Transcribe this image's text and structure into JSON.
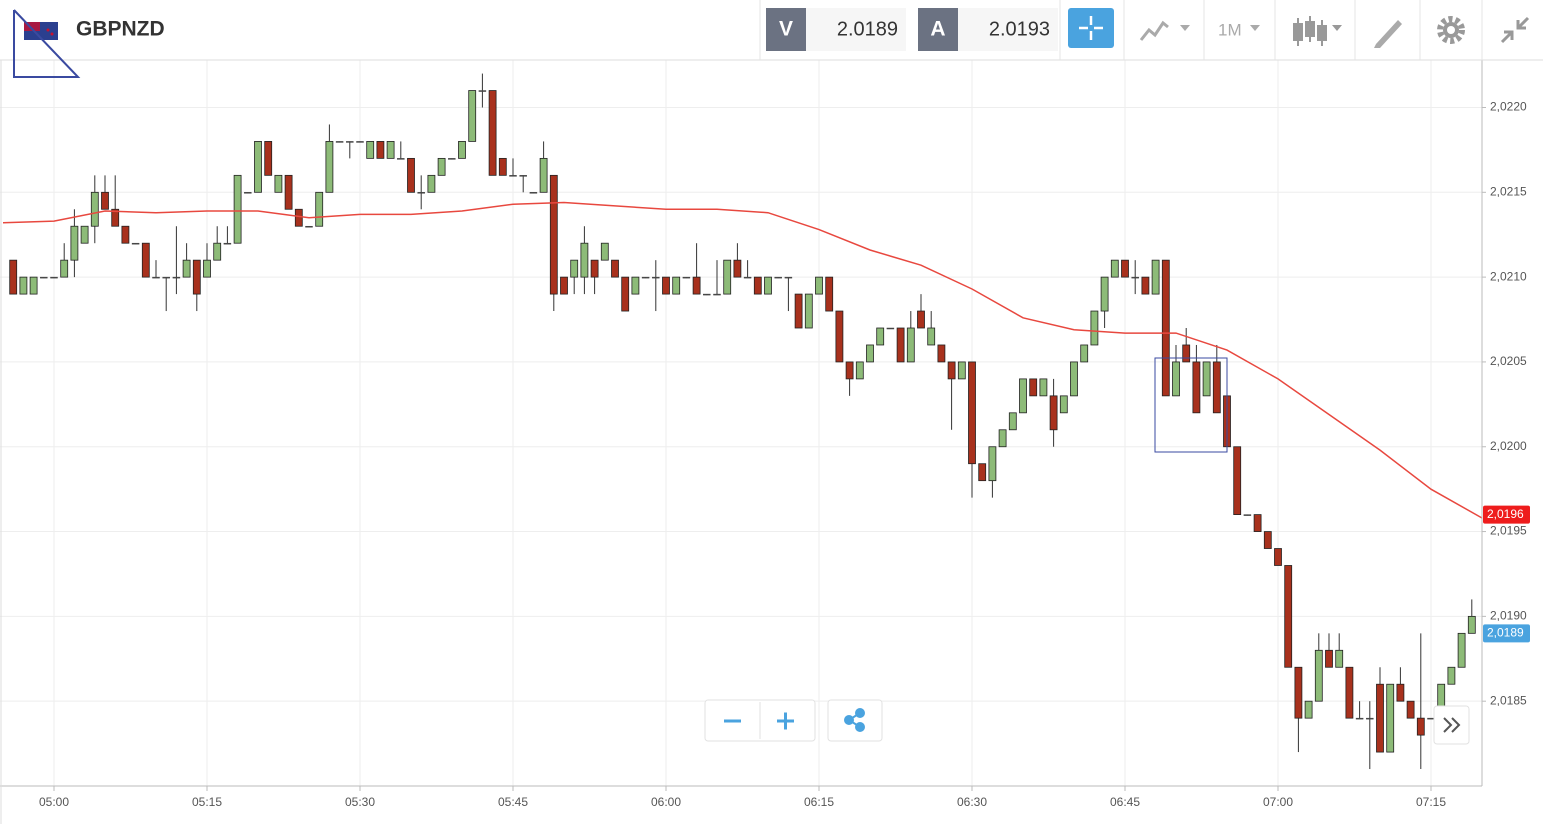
{
  "toolbar": {
    "symbol": "GBPNZD",
    "bid_label": "V",
    "bid": 2.0189,
    "ask_label": "A",
    "ask": 2.0193,
    "timeframe": "1M"
  },
  "chart_data": {
    "type": "candlestick",
    "x": [
      "04:56",
      "04:57",
      "04:58",
      "04:59",
      "05:00",
      "05:01",
      "05:02",
      "05:03",
      "05:04",
      "05:05",
      "05:06",
      "05:07",
      "05:08",
      "05:09",
      "05:10",
      "05:11",
      "05:12",
      "05:13",
      "05:14",
      "05:15",
      "05:16",
      "05:17",
      "05:18",
      "05:19",
      "05:20",
      "05:21",
      "05:22",
      "05:23",
      "05:24",
      "05:25",
      "05:26",
      "05:27",
      "05:28",
      "05:29",
      "05:30",
      "05:31",
      "05:32",
      "05:33",
      "05:34",
      "05:35",
      "05:36",
      "05:37",
      "05:38",
      "05:39",
      "05:40",
      "05:41",
      "05:42",
      "05:43",
      "05:44",
      "05:45",
      "05:46",
      "05:47",
      "05:48",
      "05:49",
      "05:50",
      "05:51",
      "05:52",
      "05:53",
      "05:54",
      "05:55",
      "05:56",
      "05:57",
      "05:58",
      "05:59",
      "06:00",
      "06:01",
      "06:02",
      "06:03",
      "06:04",
      "06:05",
      "06:06",
      "06:07",
      "06:08",
      "06:09",
      "06:10",
      "06:11",
      "06:12",
      "06:13",
      "06:14",
      "06:15",
      "06:16",
      "06:17",
      "06:18",
      "06:19",
      "06:20",
      "06:21",
      "06:22",
      "06:23",
      "06:24",
      "06:25",
      "06:26",
      "06:27",
      "06:28",
      "06:29",
      "06:30",
      "06:31",
      "06:32",
      "06:33",
      "06:34",
      "06:35",
      "06:36",
      "06:37",
      "06:38",
      "06:39",
      "06:40",
      "06:41",
      "06:42",
      "06:43",
      "06:44",
      "06:45",
      "06:46",
      "06:47",
      "06:48",
      "06:49",
      "06:50",
      "06:51",
      "06:52",
      "06:53",
      "06:54",
      "06:55",
      "06:56",
      "06:57",
      "06:58",
      "06:59",
      "07:00",
      "07:01",
      "07:02",
      "07:03",
      "07:04",
      "07:05",
      "07:06",
      "07:07",
      "07:08",
      "07:09",
      "07:10",
      "07:11",
      "07:12",
      "07:13",
      "07:14",
      "07:15",
      "07:16",
      "07:17",
      "07:18",
      "07:19"
    ],
    "open": [
      2.0211,
      2.0209,
      2.0209,
      2.021,
      2.021,
      2.021,
      2.0211,
      2.0212,
      2.0213,
      2.0215,
      2.0214,
      2.0213,
      2.0212,
      2.0212,
      2.021,
      2.021,
      2.021,
      2.021,
      2.0211,
      2.021,
      2.0211,
      2.0212,
      2.0212,
      2.0215,
      2.0215,
      2.0218,
      2.0215,
      2.0216,
      2.0214,
      2.0213,
      2.0213,
      2.0215,
      2.0218,
      2.0218,
      2.0218,
      2.0217,
      2.0218,
      2.0217,
      2.0217,
      2.0217,
      2.0215,
      2.0215,
      2.0216,
      2.0217,
      2.0217,
      2.0218,
      2.0221,
      2.0221,
      2.0217,
      2.0216,
      2.0216,
      2.0215,
      2.0215,
      2.0216,
      2.021,
      2.021,
      2.021,
      2.0211,
      2.0211,
      2.0211,
      2.021,
      2.0209,
      2.021,
      2.021,
      2.021,
      2.0209,
      2.021,
      2.021,
      2.0209,
      2.0209,
      2.0209,
      2.0211,
      2.021,
      2.021,
      2.0209,
      2.021,
      2.021,
      2.0209,
      2.0207,
      2.0209,
      2.021,
      2.0208,
      2.0205,
      2.0204,
      2.0205,
      2.0206,
      2.0207,
      2.0207,
      2.0205,
      2.0208,
      2.0206,
      2.0206,
      2.0205,
      2.0204,
      2.0205,
      2.0199,
      2.0198,
      2.02,
      2.0201,
      2.0202,
      2.0204,
      2.0203,
      2.0203,
      2.0202,
      2.0203,
      2.0205,
      2.0206,
      2.0208,
      2.021,
      2.0211,
      2.021,
      2.021,
      2.0209,
      2.0211,
      2.0203,
      2.0206,
      2.0205,
      2.0203,
      2.0205,
      2.0203,
      2.02,
      2.0196,
      2.0196,
      2.0195,
      2.0194,
      2.0193,
      2.0187,
      2.0184,
      2.0185,
      2.0188,
      2.0187,
      2.0187,
      2.0184,
      2.0184,
      2.0186,
      2.0182,
      2.0186,
      2.0185,
      2.0184,
      2.0184,
      2.0184,
      2.0186,
      2.0187,
      2.0189
    ],
    "high": [
      2.0211,
      2.021,
      2.021,
      2.021,
      2.021,
      2.0212,
      2.0214,
      2.0213,
      2.0216,
      2.0216,
      2.0216,
      2.0213,
      2.0212,
      2.0212,
      2.0211,
      2.021,
      2.0213,
      2.0212,
      2.0211,
      2.0212,
      2.0213,
      2.0213,
      2.0216,
      2.0215,
      2.0218,
      2.0218,
      2.0216,
      2.0216,
      2.0214,
      2.0213,
      2.0215,
      2.0219,
      2.0218,
      2.0218,
      2.0218,
      2.0218,
      2.0218,
      2.0218,
      2.0218,
      2.0217,
      2.0216,
      2.0216,
      2.0217,
      2.0217,
      2.0218,
      2.0221,
      2.0222,
      2.0221,
      2.0217,
      2.0217,
      2.0216,
      2.0215,
      2.0218,
      2.0216,
      2.021,
      2.0211,
      2.0213,
      2.0211,
      2.0212,
      2.0211,
      2.021,
      2.021,
      2.021,
      2.0211,
      2.021,
      2.021,
      2.021,
      2.0212,
      2.0209,
      2.0211,
      2.0211,
      2.0212,
      2.0211,
      2.021,
      2.021,
      2.021,
      2.021,
      2.0209,
      2.0209,
      2.021,
      2.021,
      2.0208,
      2.0205,
      2.0205,
      2.0206,
      2.0207,
      2.0207,
      2.0207,
      2.0208,
      2.0209,
      2.0208,
      2.0206,
      2.0205,
      2.0205,
      2.0205,
      2.0199,
      2.02,
      2.0201,
      2.0202,
      2.0204,
      2.0204,
      2.0204,
      2.0204,
      2.0203,
      2.0205,
      2.0206,
      2.0208,
      2.021,
      2.0211,
      2.0211,
      2.0211,
      2.021,
      2.0211,
      2.0211,
      2.0206,
      2.0207,
      2.0206,
      2.0205,
      2.0206,
      2.0203,
      2.02,
      2.0196,
      2.0196,
      2.0195,
      2.0194,
      2.0193,
      2.0187,
      2.0185,
      2.0189,
      2.0189,
      2.0189,
      2.0187,
      2.0185,
      2.0185,
      2.0187,
      2.0186,
      2.0187,
      2.0185,
      2.0189,
      2.0184,
      2.0186,
      2.0187,
      2.0189,
      2.0191
    ],
    "low": [
      2.0209,
      2.0209,
      2.0209,
      2.021,
      2.021,
      2.021,
      2.021,
      2.0212,
      2.0212,
      2.0214,
      2.0213,
      2.0212,
      2.0212,
      2.021,
      2.021,
      2.0208,
      2.0209,
      2.021,
      2.0208,
      2.021,
      2.0211,
      2.0212,
      2.0212,
      2.0215,
      2.0215,
      2.0216,
      2.0215,
      2.0214,
      2.0213,
      2.0213,
      2.0213,
      2.0215,
      2.0218,
      2.0217,
      2.0218,
      2.0217,
      2.0217,
      2.0217,
      2.0217,
      2.0215,
      2.0214,
      2.0215,
      2.0216,
      2.0217,
      2.0217,
      2.0218,
      2.022,
      2.0216,
      2.0216,
      2.0216,
      2.0215,
      2.0215,
      2.0215,
      2.0208,
      2.0209,
      2.0209,
      2.0209,
      2.0209,
      2.0211,
      2.021,
      2.0208,
      2.0209,
      2.021,
      2.0208,
      2.0209,
      2.0209,
      2.021,
      2.0209,
      2.0209,
      2.0209,
      2.0209,
      2.021,
      2.021,
      2.0209,
      2.0209,
      2.021,
      2.0208,
      2.0207,
      2.0207,
      2.0209,
      2.0208,
      2.0205,
      2.0203,
      2.0204,
      2.0205,
      2.0206,
      2.0207,
      2.0205,
      2.0205,
      2.0207,
      2.0206,
      2.0205,
      2.0201,
      2.0204,
      2.0197,
      2.0198,
      2.0197,
      2.02,
      2.0201,
      2.0202,
      2.0203,
      2.0203,
      2.02,
      2.0202,
      2.0203,
      2.0205,
      2.0206,
      2.0207,
      2.021,
      2.021,
      2.0209,
      2.0209,
      2.0209,
      2.0203,
      2.0203,
      2.0205,
      2.0202,
      2.0203,
      2.0202,
      2.02,
      2.0196,
      2.0196,
      2.0195,
      2.0194,
      2.0193,
      2.0187,
      2.0182,
      2.0184,
      2.0185,
      2.0187,
      2.0187,
      2.0184,
      2.0184,
      2.0181,
      2.0182,
      2.0182,
      2.0185,
      2.0184,
      2.0181,
      2.0184,
      2.0184,
      2.0186,
      2.0187,
      2.0189
    ],
    "close": [
      2.0209,
      2.021,
      2.021,
      2.021,
      2.021,
      2.0211,
      2.0213,
      2.0213,
      2.0215,
      2.0214,
      2.0213,
      2.0212,
      2.0212,
      2.021,
      2.021,
      2.021,
      2.021,
      2.0211,
      2.0209,
      2.0211,
      2.0212,
      2.0212,
      2.0216,
      2.0215,
      2.0218,
      2.0216,
      2.0216,
      2.0214,
      2.0213,
      2.0213,
      2.0215,
      2.0218,
      2.0218,
      2.0218,
      2.0218,
      2.0218,
      2.0217,
      2.0218,
      2.0217,
      2.0215,
      2.0215,
      2.0216,
      2.0217,
      2.0217,
      2.0218,
      2.0221,
      2.0221,
      2.0216,
      2.0216,
      2.0216,
      2.0216,
      2.0215,
      2.0217,
      2.0209,
      2.0209,
      2.0211,
      2.0212,
      2.021,
      2.0212,
      2.021,
      2.0208,
      2.021,
      2.021,
      2.021,
      2.0209,
      2.021,
      2.021,
      2.0209,
      2.0209,
      2.0209,
      2.0211,
      2.021,
      2.021,
      2.0209,
      2.021,
      2.021,
      2.021,
      2.0207,
      2.0209,
      2.021,
      2.0208,
      2.0205,
      2.0204,
      2.0205,
      2.0206,
      2.0207,
      2.0207,
      2.0205,
      2.0207,
      2.0207,
      2.0207,
      2.0205,
      2.0204,
      2.0205,
      2.0199,
      2.0198,
      2.02,
      2.0201,
      2.0202,
      2.0204,
      2.0203,
      2.0204,
      2.0201,
      2.0203,
      2.0205,
      2.0206,
      2.0208,
      2.021,
      2.0211,
      2.021,
      2.021,
      2.0209,
      2.0211,
      2.0203,
      2.0205,
      2.0205,
      2.0202,
      2.0205,
      2.0202,
      2.02,
      2.0196,
      2.0196,
      2.0195,
      2.0194,
      2.0193,
      2.0187,
      2.0184,
      2.0185,
      2.0188,
      2.0187,
      2.0188,
      2.0184,
      2.0184,
      2.0184,
      2.0182,
      2.0186,
      2.0185,
      2.0184,
      2.0183,
      2.0184,
      2.0186,
      2.0187,
      2.0189,
      2.019
    ],
    "up_color": "#8dbb78",
    "down_color": "#a8311d",
    "overlays": [
      {
        "type": "line",
        "color": "#e8483f",
        "x": [
          "04:55",
          "05:00",
          "05:05",
          "05:10",
          "05:15",
          "05:20",
          "05:25",
          "05:30",
          "05:35",
          "05:40",
          "05:45",
          "05:50",
          "05:55",
          "06:00",
          "06:05",
          "06:10",
          "06:15",
          "06:20",
          "06:25",
          "06:30",
          "06:35",
          "06:40",
          "06:45",
          "06:50",
          "06:55",
          "07:00",
          "07:05",
          "07:10",
          "07:15",
          "07:20"
        ],
        "values": [
          2.02132,
          2.02133,
          2.02139,
          2.02138,
          2.02139,
          2.02139,
          2.02135,
          2.02137,
          2.02137,
          2.02139,
          2.02143,
          2.02144,
          2.02142,
          2.0214,
          2.0214,
          2.02138,
          2.02128,
          2.02116,
          2.02107,
          2.02093,
          2.02076,
          2.02069,
          2.02067,
          2.02067,
          2.02057,
          2.0204,
          2.02019,
          2.01998,
          2.01975,
          2.01958
        ]
      }
    ],
    "price_labels": [
      {
        "value": 2.0196,
        "label": "2,0196",
        "color": "#ee1c1c"
      },
      {
        "value": 2.0189,
        "label": "2,0189",
        "color": "#4aa3df"
      }
    ],
    "xlim": [
      "04:55",
      "07:20"
    ],
    "xticks": [
      "05:00",
      "05:15",
      "05:30",
      "05:45",
      "06:00",
      "06:15",
      "06:30",
      "06:45",
      "07:00",
      "07:15"
    ],
    "ylim": [
      2.018,
      2.02228
    ],
    "yticks": [
      {
        "value": 2.022,
        "label": "2,0220"
      },
      {
        "value": 2.0215,
        "label": "2,0215"
      },
      {
        "value": 2.021,
        "label": "2,0210"
      },
      {
        "value": 2.0205,
        "label": "2,0205"
      },
      {
        "value": 2.02,
        "label": "2,0200"
      },
      {
        "value": 2.0195,
        "label": "2,0195"
      },
      {
        "value": 2.019,
        "label": "2,0190"
      },
      {
        "value": 2.0185,
        "label": "2,0185"
      }
    ],
    "grid": true
  }
}
